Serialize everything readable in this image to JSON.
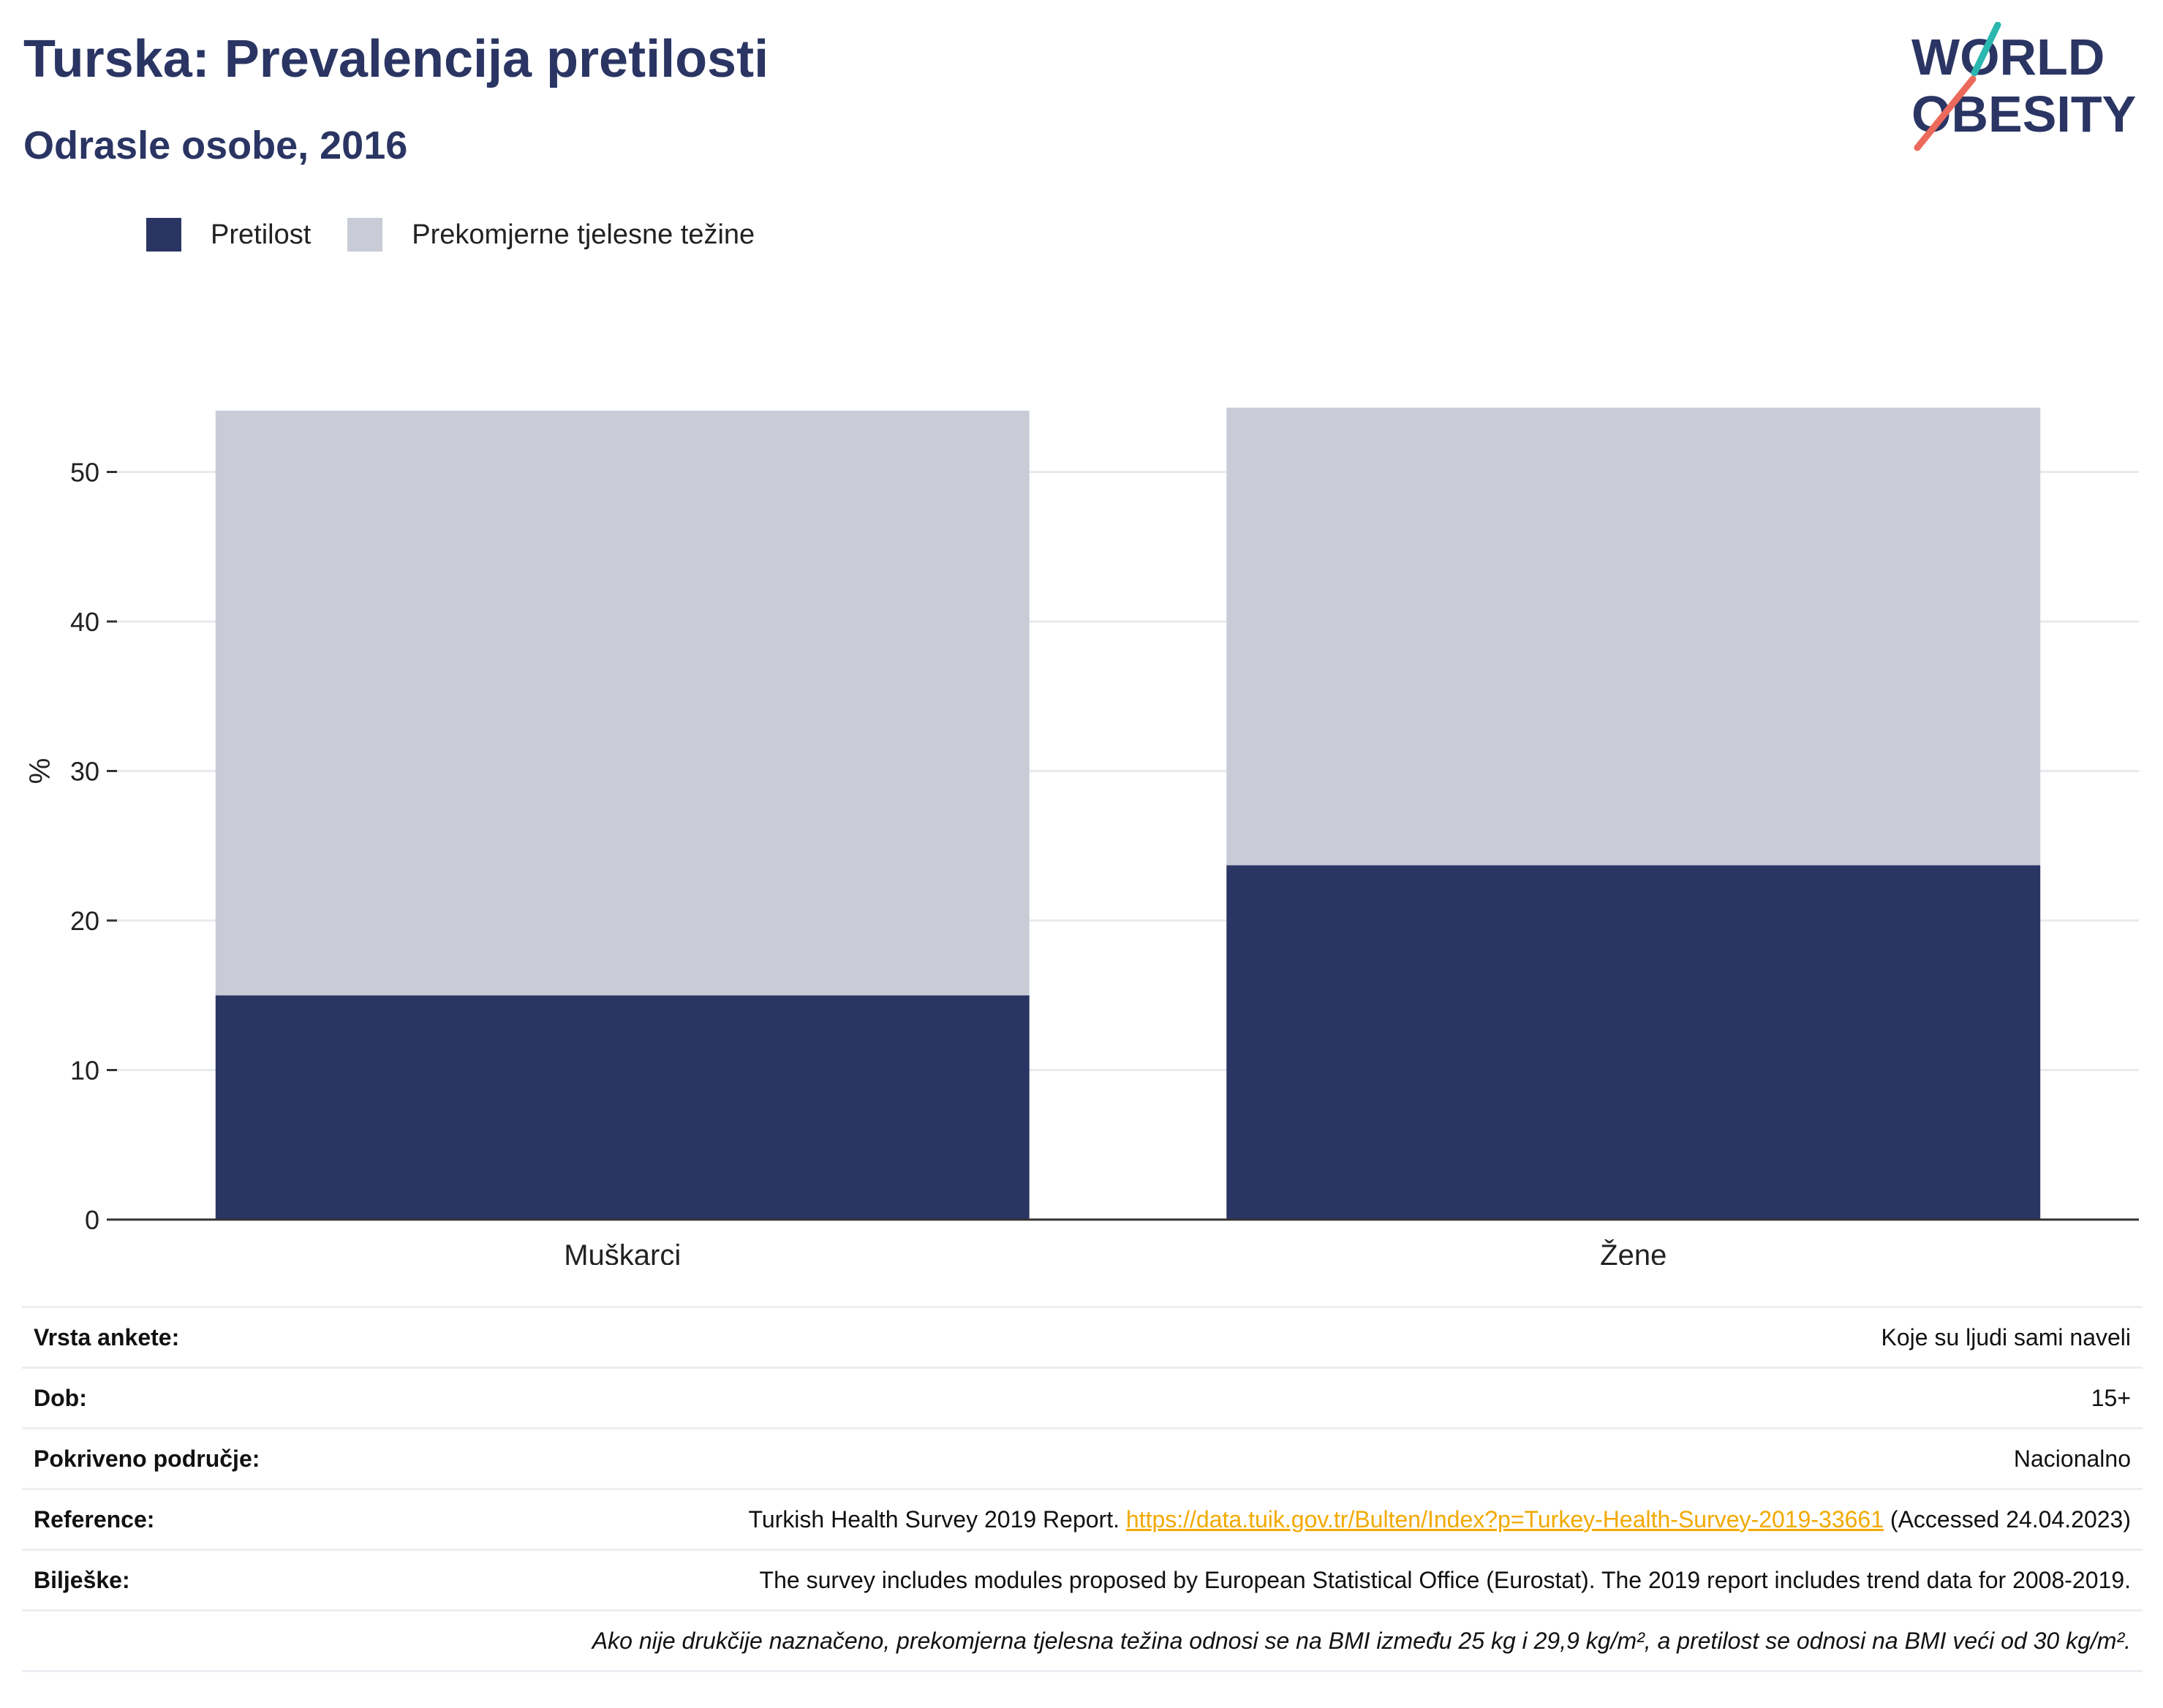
{
  "header": {
    "title": "Turska: Prevalencija pretilosti",
    "subtitle": "Odrasle osobe, 2016"
  },
  "logo": {
    "line1": "WORLD",
    "line2": "OBESITY"
  },
  "colors": {
    "obesity": "#2a3563",
    "overweight": "#c9ccd7",
    "accent_teal": "#2ab7b0",
    "accent_coral": "#ec6a5c",
    "link": "#f2a900"
  },
  "chart_data": {
    "type": "bar",
    "stacked": true,
    "categories": [
      "Muškarci",
      "Žene"
    ],
    "series": [
      {
        "name": "Pretilost",
        "color": "#2a3563",
        "values": [
          15.0,
          23.7
        ]
      },
      {
        "name": "Prekomjerne tjelesne težine",
        "color": "#c9ccd7",
        "values": [
          39.1,
          30.6
        ]
      }
    ],
    "ylabel": "%",
    "xlabel": "",
    "ylim": [
      0,
      60
    ],
    "yticks": [
      0,
      10,
      20,
      30,
      40,
      50
    ],
    "grid": true,
    "legend_position": "top-left"
  },
  "info": {
    "survey_type": {
      "label": "Vrsta ankete:",
      "value": "Koje su ljudi sami naveli"
    },
    "age": {
      "label": "Dob:",
      "value": "15+"
    },
    "coverage": {
      "label": "Pokriveno područje:",
      "value": "Nacionalno"
    },
    "reference": {
      "label": "Reference:",
      "prefix": "Turkish Health Survey 2019 Report.",
      "link": "https://data.tuik.gov.tr/Bulten/Index?p=Turkey-Health-Survey-2019-33661",
      "suffix": "(Accessed 24.04.2023)"
    },
    "notes": {
      "label": "Bilješke:",
      "value": "The survey includes modules proposed by European Statistical Office (Eurostat). The 2019 report includes trend data for 2008-2019."
    },
    "footnote": "Ako nije drukčije naznačeno, prekomjerna tjelesna težina odnosi se na BMI između 25 kg i 29,9 kg/m², a pretilost se odnosi na BMI veći od 30 kg/m²."
  }
}
